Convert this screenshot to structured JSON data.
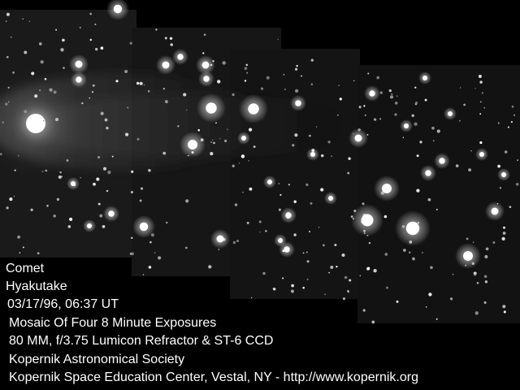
{
  "caption": {
    "line1": "Comet",
    "line2": "Hyakutake",
    "line3": "03/17/96, 06:37 UT",
    "line4": "Mosaic Of Four 8 Minute Exposures",
    "line5": "80 MM, f/3.75 Lumicon Refractor & ST-6 CCD",
    "line6": "Kopernik Astronomical Society",
    "line7": "Kopernik Space Education Center, Vestal, NY -  http://www.kopernik.org"
  },
  "colors": {
    "background": "#000000",
    "panel": "#151515",
    "text": "#ffffff"
  }
}
